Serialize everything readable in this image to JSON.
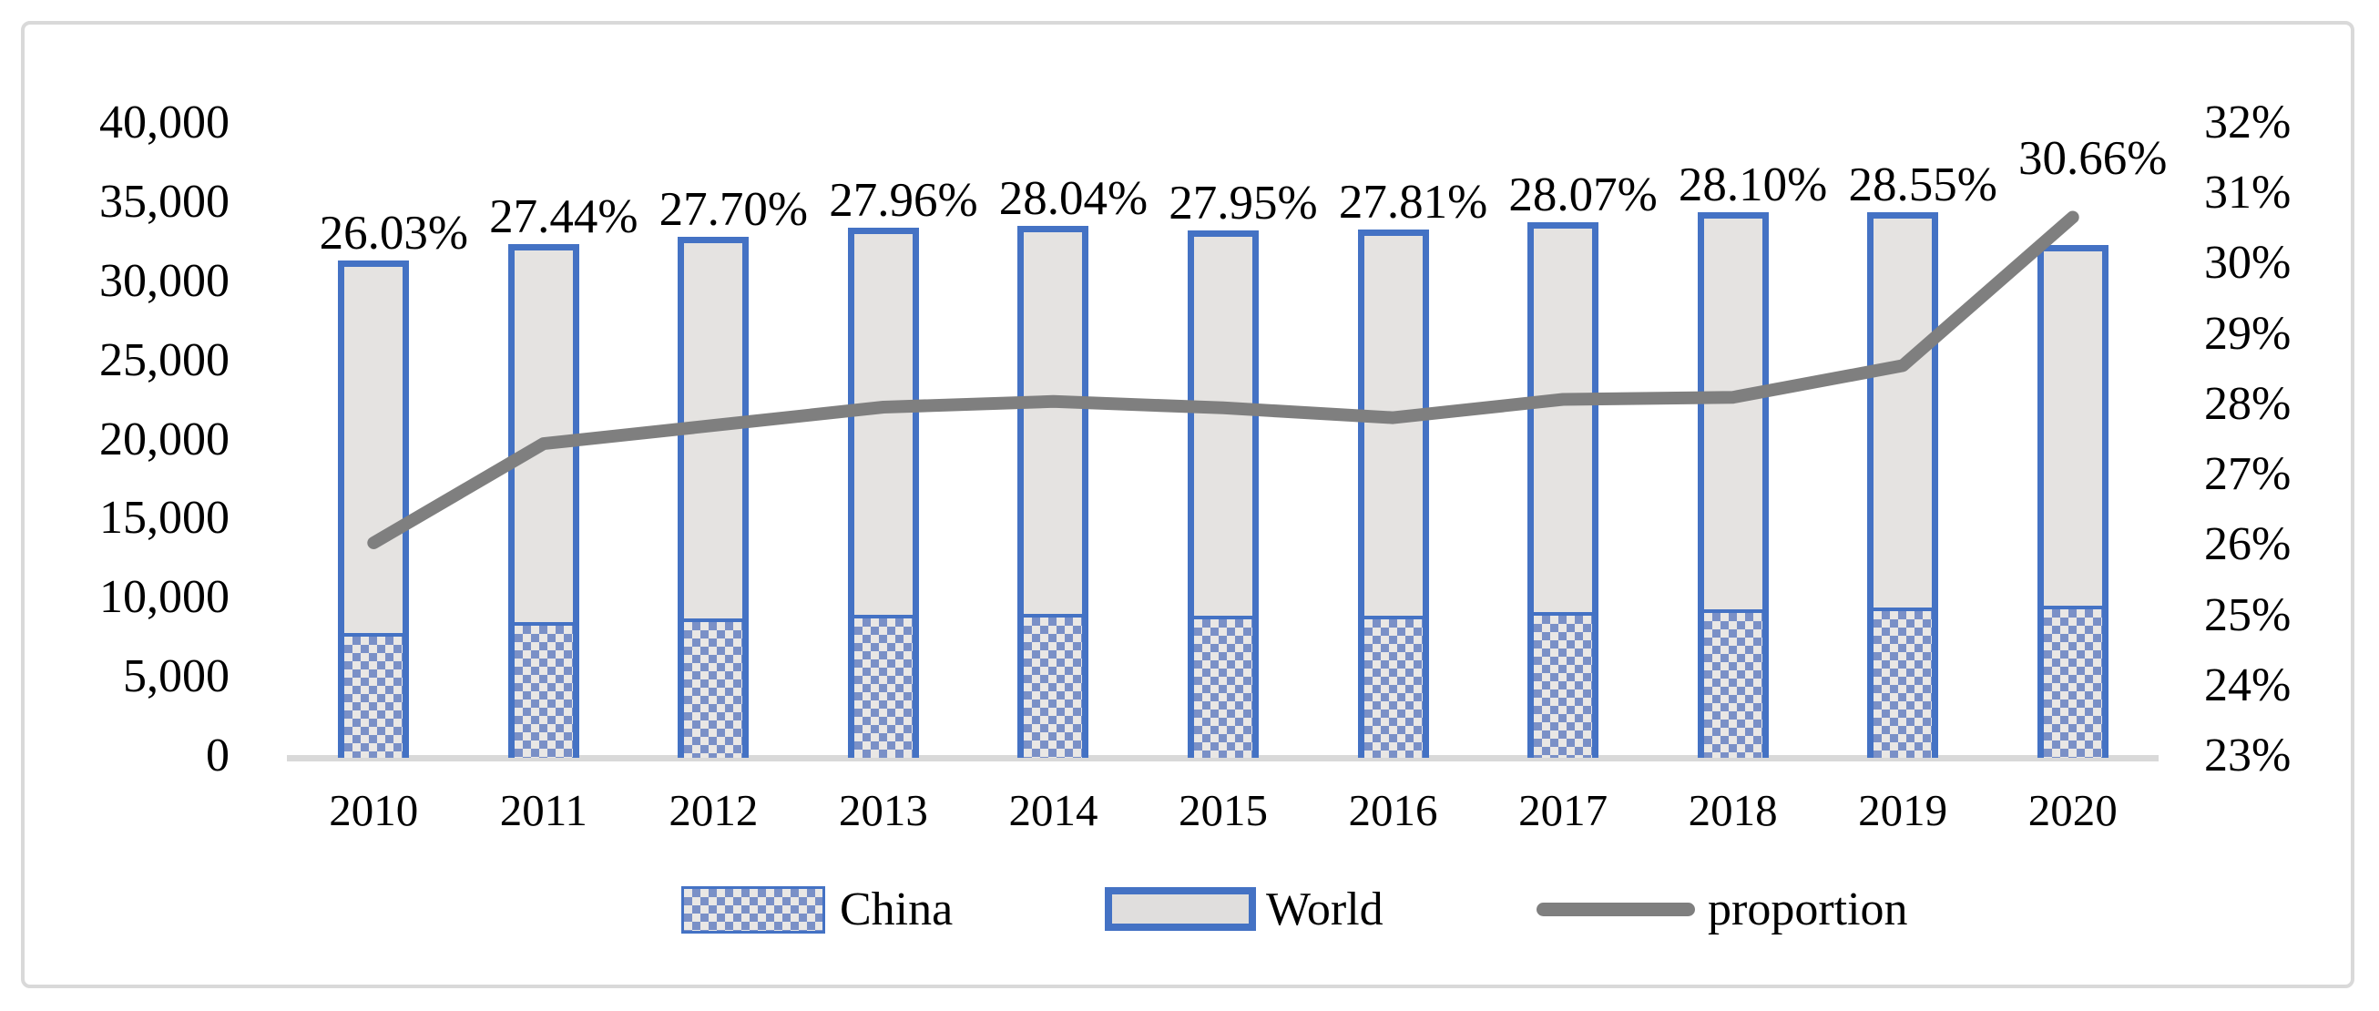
{
  "chart_data": {
    "type": "combo-bar-line",
    "title": "",
    "categories": [
      "2010",
      "2011",
      "2012",
      "2013",
      "2014",
      "2015",
      "2016",
      "2017",
      "2018",
      "2019",
      "2020"
    ],
    "series": [
      {
        "name": "China",
        "chart_type": "bar",
        "style": "blue-checkerboard-pattern",
        "axis": "left",
        "values": [
          8145,
          8876,
          9088,
          9329,
          9395,
          9285,
          9254,
          9472,
          9653,
          9809,
          9899
        ]
      },
      {
        "name": "World",
        "chart_type": "bar",
        "style": "light-gray-fill-blue-border",
        "axis": "left",
        "values": [
          31284,
          32344,
          32811,
          33361,
          33503,
          33219,
          33274,
          33740,
          34347,
          34356,
          32284
        ]
      },
      {
        "name": "proportion",
        "chart_type": "line",
        "style": "thick-gray-line",
        "axis": "right",
        "values": [
          26.03,
          27.44,
          27.7,
          27.96,
          28.04,
          27.95,
          27.81,
          28.07,
          28.1,
          28.55,
          30.66
        ]
      }
    ],
    "data_labels": [
      "26.03%",
      "27.44%",
      "27.70%",
      "27.96%",
      "28.04%",
      "27.95%",
      "27.81%",
      "28.07%",
      "28.10%",
      "28.55%",
      "30.66%"
    ],
    "axes": {
      "left": {
        "min": 0,
        "max": 40000,
        "step": 5000,
        "ticks": [
          "0",
          "5,000",
          "10,000",
          "15,000",
          "20,000",
          "25,000",
          "30,000",
          "35,000",
          "40,000"
        ]
      },
      "right": {
        "min": 23,
        "max": 32,
        "step": 1,
        "ticks": [
          "23%",
          "24%",
          "25%",
          "26%",
          "27%",
          "28%",
          "29%",
          "30%",
          "31%",
          "32%"
        ]
      }
    },
    "legend": {
      "position": "bottom",
      "items": [
        {
          "label": "China",
          "swatch": "pattern-bar"
        },
        {
          "label": "World",
          "swatch": "filled-bar"
        },
        {
          "label": "proportion",
          "swatch": "line"
        }
      ]
    },
    "grid": "off",
    "colors": {
      "bar_border": "#4472C4",
      "bar_fill": "#E5E3E1",
      "pattern_blue": "#7A90C7",
      "line_gray": "#7F7F7F",
      "axis_line": "#D9D9D9",
      "frame_border": "#D9D9D9",
      "text": "#000000",
      "background": "#FFFFFF"
    }
  }
}
